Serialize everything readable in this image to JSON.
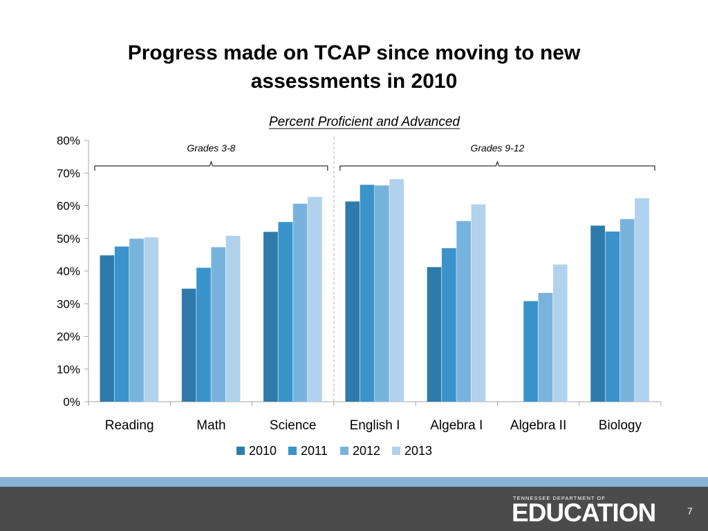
{
  "slide": {
    "title_line1": "Progress made on TCAP since moving to new",
    "title_line2": "assessments in 2010",
    "page_number": "7"
  },
  "footer": {
    "logo_small": "TENNESSEE DEPARTMENT OF",
    "logo_big": "EDUCATION",
    "bar_color": "#4b4b4b",
    "stripe_color": "#86b3d6"
  },
  "chart_data": {
    "type": "bar",
    "title": "Percent Proficient and Advanced",
    "xlabel": "",
    "ylabel": "",
    "categories": [
      "Reading",
      "Math",
      "Science",
      "English I",
      "Algebra I",
      "Algebra II",
      "Biology"
    ],
    "series": [
      {
        "name": "2010",
        "color": "#2e7bab",
        "values": [
          44.8,
          34.6,
          52.0,
          61.3,
          41.2,
          null,
          53.9
        ]
      },
      {
        "name": "2011",
        "color": "#3a93cb",
        "values": [
          47.5,
          41.0,
          55.0,
          66.4,
          47.0,
          30.8,
          52.1
        ]
      },
      {
        "name": "2012",
        "color": "#78b3de",
        "values": [
          49.9,
          47.3,
          60.6,
          66.2,
          55.3,
          33.3,
          55.9
        ]
      },
      {
        "name": "2013",
        "color": "#b0d2ec",
        "values": [
          50.3,
          50.8,
          62.7,
          68.1,
          60.4,
          42.0,
          62.3
        ]
      }
    ],
    "ylim": [
      0,
      80
    ],
    "yticks": [
      0,
      10,
      20,
      30,
      40,
      50,
      60,
      70,
      80
    ],
    "ytick_labels": [
      "0%",
      "10%",
      "20%",
      "30%",
      "40%",
      "50%",
      "60%",
      "70%",
      "80%"
    ],
    "grid": false,
    "legend_position": "bottom",
    "annotations": [
      {
        "text": "Grades 3-8",
        "from_category": 0,
        "to_category": 2
      },
      {
        "text": "Grades 9-12",
        "from_category": 3,
        "to_category": 6
      }
    ],
    "divider_after_category": 2
  }
}
